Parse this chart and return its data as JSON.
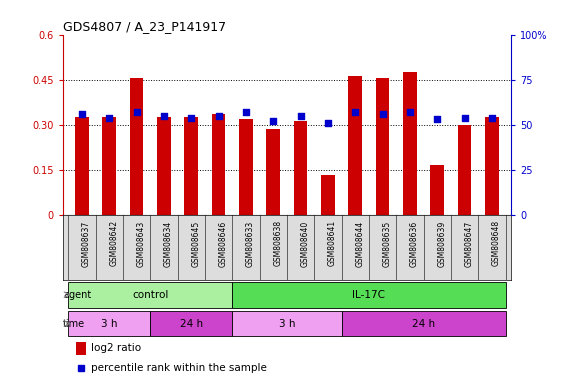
{
  "title": "GDS4807 / A_23_P141917",
  "samples": [
    "GSM808637",
    "GSM808642",
    "GSM808643",
    "GSM808634",
    "GSM808645",
    "GSM808646",
    "GSM808633",
    "GSM808638",
    "GSM808640",
    "GSM808641",
    "GSM808644",
    "GSM808635",
    "GSM808636",
    "GSM808639",
    "GSM808647",
    "GSM808648"
  ],
  "log2_ratio": [
    0.325,
    0.325,
    0.455,
    0.325,
    0.325,
    0.335,
    0.32,
    0.285,
    0.312,
    0.132,
    0.462,
    0.455,
    0.475,
    0.168,
    0.3,
    0.325
  ],
  "percentile": [
    56,
    54,
    57,
    55,
    54,
    55,
    57,
    52,
    55,
    51,
    57,
    56,
    57,
    53,
    54,
    54
  ],
  "bar_color": "#cc0000",
  "dot_color": "#0000cc",
  "ylim_left": [
    0,
    0.6
  ],
  "ylim_right": [
    0,
    100
  ],
  "yticks_left": [
    0,
    0.15,
    0.3,
    0.45,
    0.6
  ],
  "yticks_right": [
    0,
    25,
    50,
    75,
    100
  ],
  "ytick_labels_left": [
    "0",
    "0.15",
    "0.30",
    "0.45",
    "0.6"
  ],
  "ytick_labels_right": [
    "0",
    "25",
    "50",
    "75",
    "100%"
  ],
  "agent_groups": [
    {
      "label": "control",
      "start": 0,
      "end": 6,
      "color": "#aaf0a0"
    },
    {
      "label": "IL-17C",
      "start": 6,
      "end": 16,
      "color": "#55dd55"
    }
  ],
  "time_groups": [
    {
      "label": "3 h",
      "start": 0,
      "end": 3,
      "color": "#f0a0f0"
    },
    {
      "label": "24 h",
      "start": 3,
      "end": 6,
      "color": "#cc44cc"
    },
    {
      "label": "3 h",
      "start": 6,
      "end": 10,
      "color": "#f0a0f0"
    },
    {
      "label": "24 h",
      "start": 10,
      "end": 16,
      "color": "#cc44cc"
    }
  ],
  "legend_bar_label": "log2 ratio",
  "legend_dot_label": "percentile rank within the sample",
  "agent_label": "agent",
  "time_label": "time",
  "bg_color": "#ffffff",
  "label_color_left": "#cc0000",
  "label_color_right": "#0000cc",
  "tick_bg_color": "#dddddd"
}
